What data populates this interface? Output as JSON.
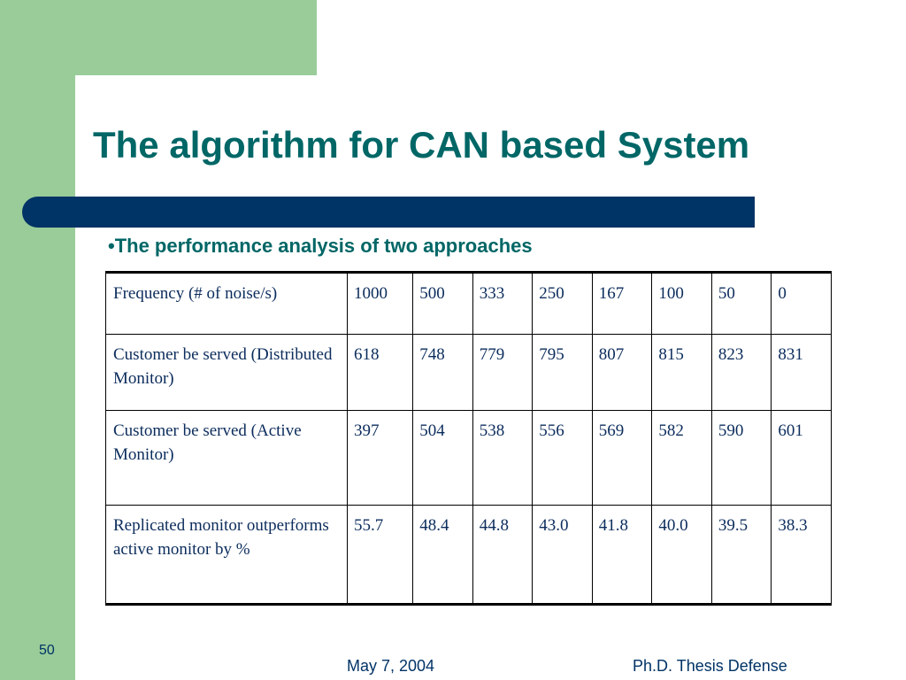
{
  "slide": {
    "title": "The algorithm for CAN based System",
    "bullet": "•The performance analysis of two approaches",
    "slide_number": "50",
    "date": "May 7, 2004",
    "footer_title": "Ph.D. Thesis Defense",
    "colors": {
      "green": "#99cc99",
      "navy": "#003366",
      "title": "#006666"
    }
  },
  "table": {
    "rows": [
      {
        "label": "Frequency (# of noise/s)",
        "values": [
          "1000",
          "500",
          "333",
          "250",
          "167",
          "100",
          "50",
          "0"
        ]
      },
      {
        "label": "Customer be served (Distributed Monitor)",
        "values": [
          "618",
          "748",
          "779",
          "795",
          "807",
          "815",
          "823",
          "831"
        ]
      },
      {
        "label": "Customer be served (Active Monitor)",
        "values": [
          "397",
          "504",
          "538",
          "556",
          "569",
          "582",
          "590",
          "601"
        ]
      },
      {
        "label": "Replicated monitor outperforms active monitor by %",
        "values": [
          "55.7",
          "48.4",
          "44.8",
          "43.0",
          "41.8",
          "40.0",
          "39.5",
          "38.3"
        ]
      }
    ]
  }
}
